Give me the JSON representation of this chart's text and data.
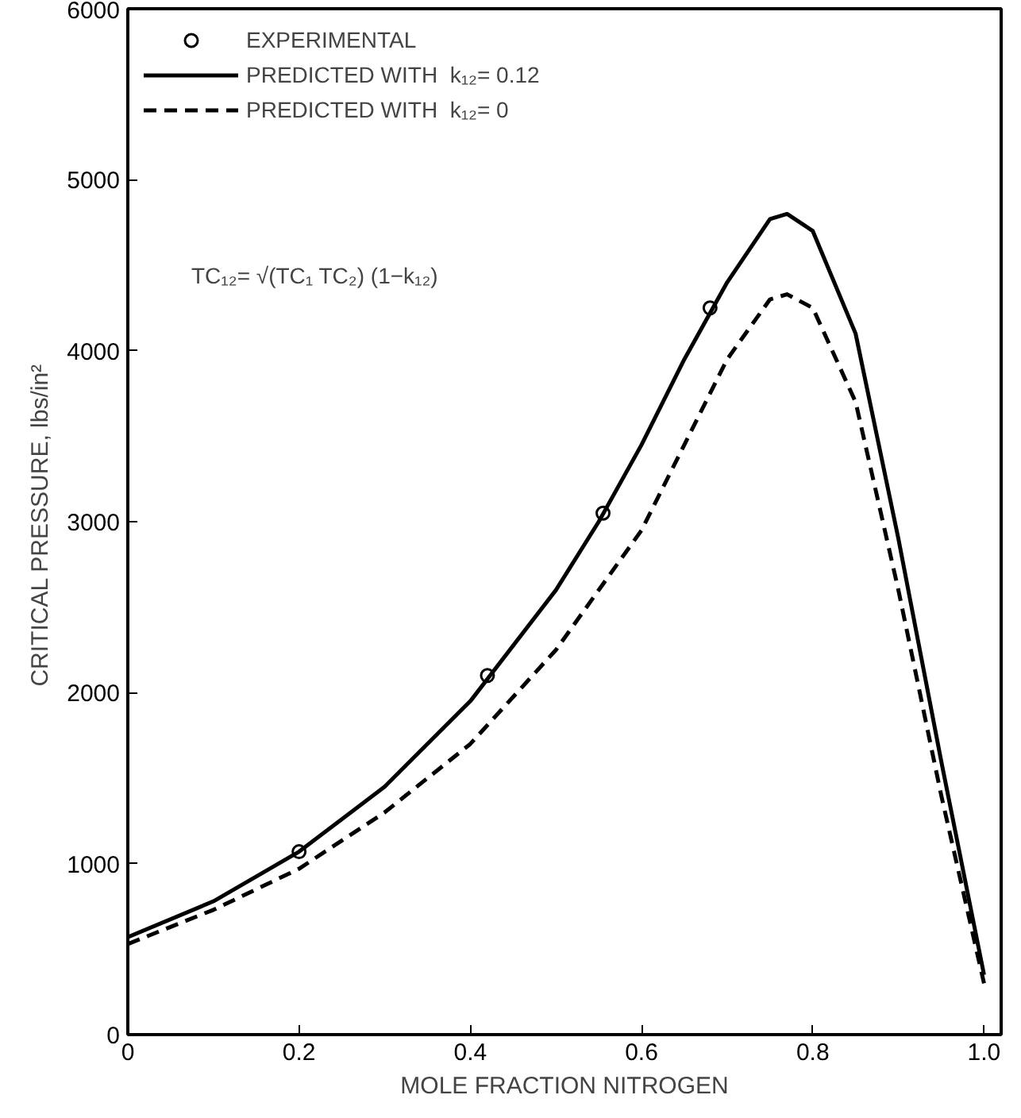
{
  "chart_data": {
    "type": "line",
    "xlabel": "MOLE FRACTION NITROGEN",
    "ylabel": "CRITICAL PRESSURE,  lbs/in²",
    "xlim": [
      0,
      1.02
    ],
    "ylim": [
      0,
      6000
    ],
    "xticks": [
      0,
      0.2,
      0.4,
      0.6,
      0.8,
      {
        "value": 1.0,
        "label": "1.0"
      }
    ],
    "yticks": [
      0,
      1000,
      2000,
      3000,
      4000,
      5000,
      6000
    ],
    "grid": false,
    "legend": "top left",
    "annotations": [
      "TC₁₂= √(TC₁ TC₂) (1−k₁₂)"
    ],
    "series": [
      {
        "name": "EXPERIMENTAL",
        "type": "scatter",
        "marker": "circle",
        "color": "#000000",
        "x": [
          0.2,
          0.42,
          0.555,
          0.68
        ],
        "values": [
          1070,
          2100,
          3050,
          4250
        ]
      },
      {
        "name": "PREDICTED WITH  k₁₂= 0.12",
        "line_style": "solid",
        "color": "#000000",
        "x": [
          0,
          0.1,
          0.2,
          0.3,
          0.4,
          0.5,
          0.55,
          0.6,
          0.65,
          0.7,
          0.75,
          0.77,
          0.8,
          0.85,
          0.9,
          0.95,
          1.0
        ],
        "values": [
          570,
          780,
          1070,
          1450,
          1950,
          2600,
          3000,
          3450,
          3950,
          4400,
          4770,
          4800,
          4700,
          4100,
          2900,
          1600,
          350
        ]
      },
      {
        "name": "PREDICTED WITH  k₁₂= 0",
        "line_style": "dashed",
        "color": "#000000",
        "x": [
          0,
          0.1,
          0.2,
          0.3,
          0.4,
          0.5,
          0.6,
          0.65,
          0.7,
          0.75,
          0.77,
          0.8,
          0.85,
          0.9,
          0.95,
          1.0
        ],
        "values": [
          530,
          730,
          970,
          1300,
          1700,
          2250,
          2950,
          3450,
          3950,
          4300,
          4330,
          4250,
          3700,
          2600,
          1400,
          300
        ]
      }
    ]
  }
}
